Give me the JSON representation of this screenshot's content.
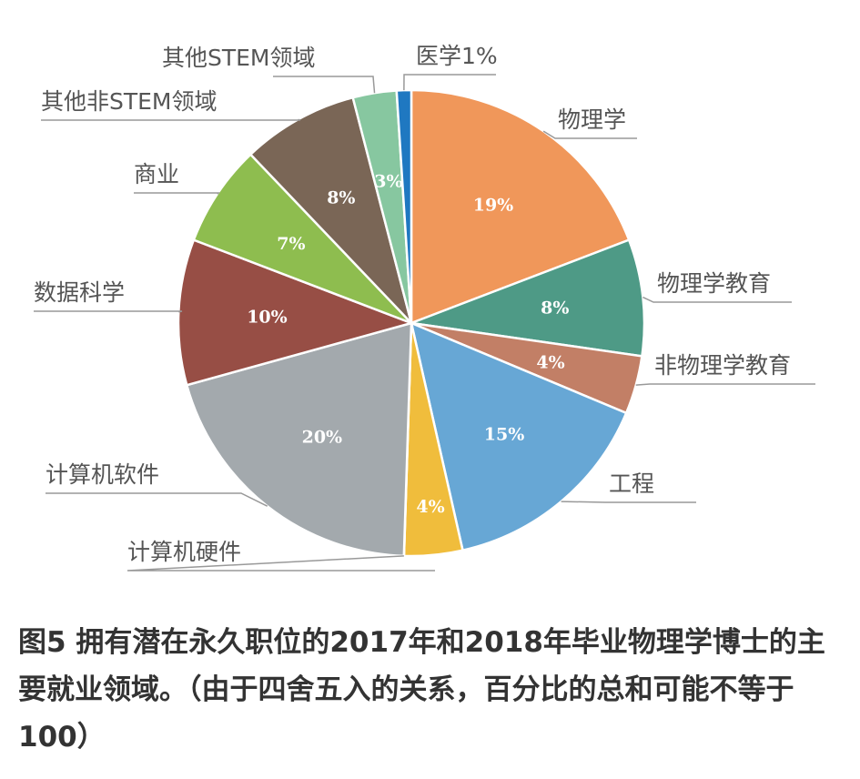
{
  "chart_data": {
    "type": "pie",
    "title": "",
    "slices": [
      {
        "label": "物理学",
        "value": 19,
        "value_label": "19%",
        "color": "#F0975A"
      },
      {
        "label": "物理学教育",
        "value": 8,
        "value_label": "8%",
        "color": "#4E9A86"
      },
      {
        "label": "非物理学教育",
        "value": 4,
        "value_label": "4%",
        "color": "#C27F66"
      },
      {
        "label": "工程",
        "value": 15,
        "value_label": "15%",
        "color": "#67A7D5"
      },
      {
        "label": "",
        "value": 4,
        "value_label": "4%",
        "color": "#F0BD3C"
      },
      {
        "label": "计算机硬件",
        "value": 0.01,
        "value_label": "",
        "color": "#A3A9AD"
      },
      {
        "label": "计算机软件",
        "value": 20,
        "value_label": "20%",
        "color": "#A3A9AD"
      },
      {
        "label": "数据科学",
        "value": 10,
        "value_label": "10%",
        "color": "#974E45"
      },
      {
        "label": "商业",
        "value": 7,
        "value_label": "7%",
        "color": "#8EBD4F"
      },
      {
        "label": "其他非STEM领域",
        "value": 8,
        "value_label": "8%",
        "color": "#7A6656"
      },
      {
        "label": "其他STEM领域",
        "value": 3,
        "value_label": "3%",
        "color": "#87C7A0"
      },
      {
        "label": "医学1%",
        "value": 1,
        "value_label": "",
        "color": "#1F78C1"
      }
    ]
  },
  "caption": "图5 拥有潜在永久职位的2017年和2018年毕业物理学博士的主要就业领域。（由于四舍五入的关系，百分比的总和可能不等于100）"
}
